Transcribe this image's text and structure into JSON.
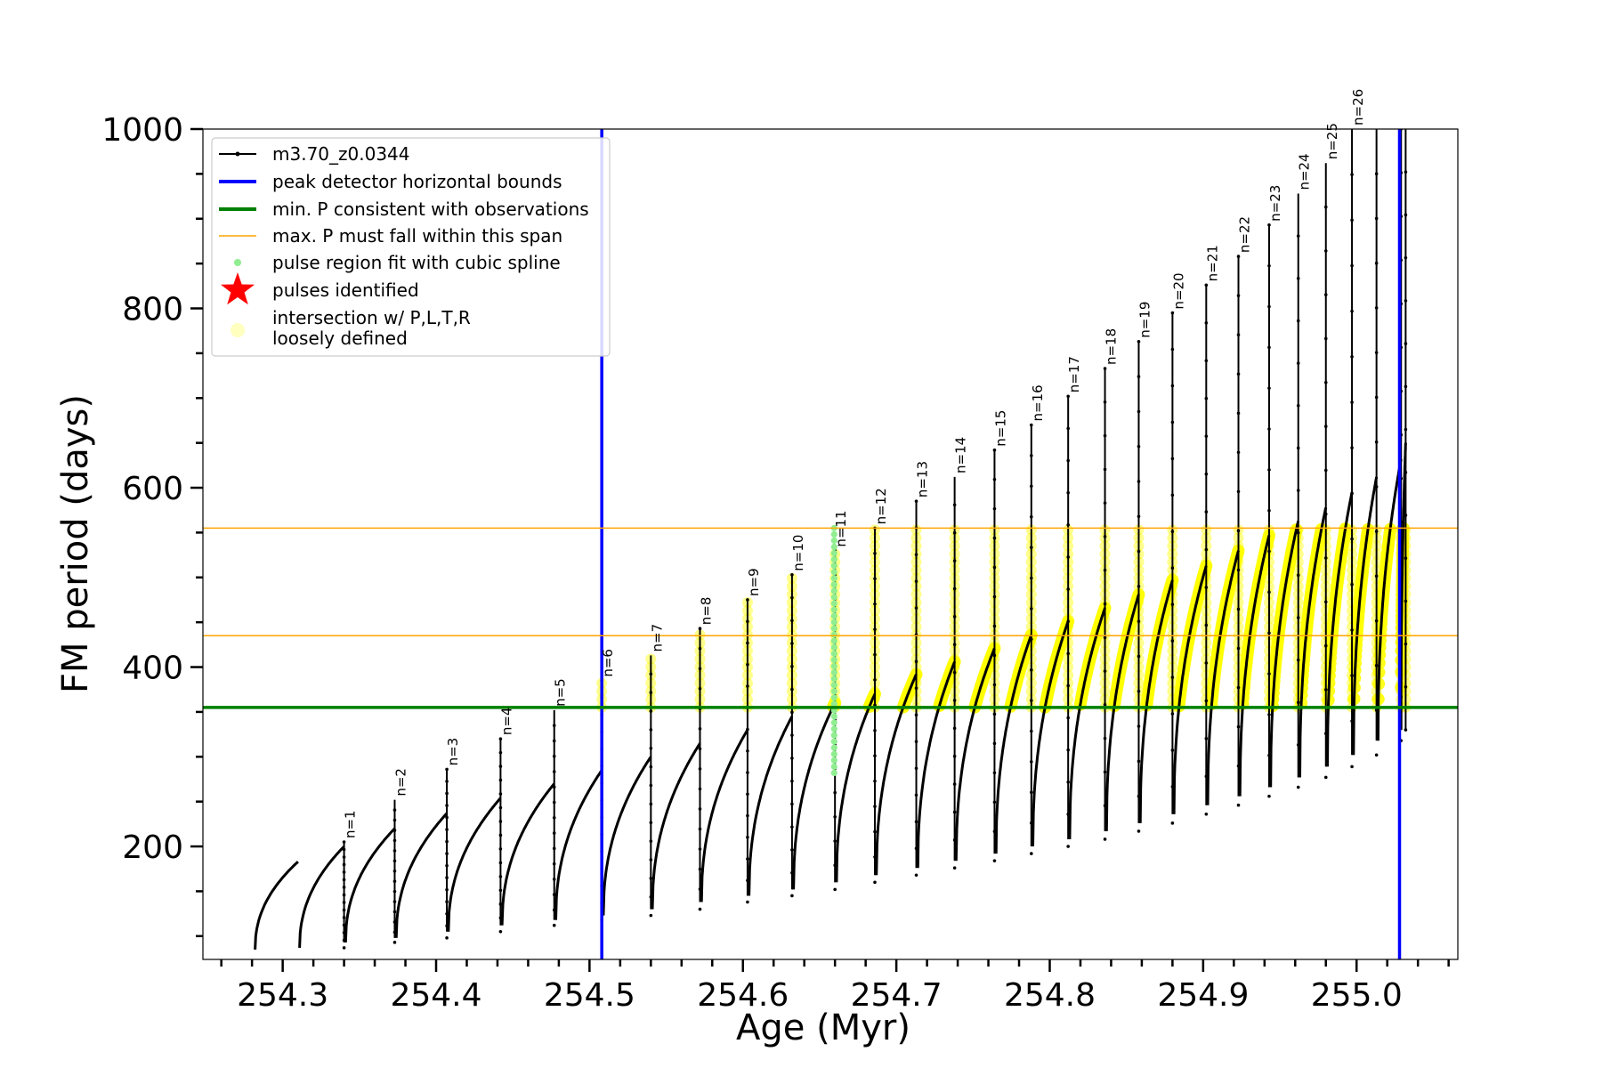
{
  "chart_data": {
    "type": "line",
    "title": "",
    "xlabel": "Age (Myr)",
    "ylabel": "FM period (days)",
    "xlim": [
      254.248,
      255.066
    ],
    "ylim": [
      74,
      1000
    ],
    "xticks_major": [
      254.3,
      254.4,
      254.5,
      254.6,
      254.7,
      254.8,
      254.9,
      255.0
    ],
    "xtick_labels": [
      "254.3",
      "254.4",
      "254.5",
      "254.6",
      "254.7",
      "254.8",
      "254.9",
      "255.0"
    ],
    "xtick_minor_step": 0.02,
    "yticks_major": [
      200,
      400,
      600,
      800,
      1000
    ],
    "ytick_labels": [
      "200",
      "400",
      "600",
      "800",
      "1000"
    ],
    "ytick_minor_step": 50,
    "grid": false,
    "legend_position": "top-left",
    "colors": {
      "track": "#000000",
      "bounds": "#0000ff",
      "min_p": "#008000",
      "max_p": "#ffa500",
      "spline": "#90ee90",
      "pulse": "#ff0000",
      "loose": "#ffff00"
    },
    "legend": [
      {
        "key": "track",
        "label": "m3.70_z0.0344",
        "marker": "line-dot"
      },
      {
        "key": "bounds",
        "label": "peak detector horizontal bounds",
        "marker": "thick-line"
      },
      {
        "key": "min_p",
        "label": "min. P consistent with observations",
        "marker": "thick-line"
      },
      {
        "key": "max_p",
        "label": "max. P must fall within this span",
        "marker": "thin-line"
      },
      {
        "key": "spline",
        "label": "pulse region fit with cubic spline",
        "marker": "dot"
      },
      {
        "key": "pulse",
        "label": "pulses identified",
        "marker": "star"
      },
      {
        "key": "loose",
        "label": "intersection w/ P,L,T,R",
        "label2": "loosely defined",
        "marker": "big-dot"
      }
    ],
    "vertical_lines": [
      254.508,
      255.028
    ],
    "min_period_line": 355,
    "max_period_lines": [
      435,
      555
    ],
    "cycles": [
      {
        "x0": 254.282,
        "x1": 254.31,
        "base": 85,
        "peak": 183,
        "spike": null
      },
      {
        "x0": 254.311,
        "x1": 254.34,
        "base": 87,
        "peak": 200,
        "spike": 205,
        "label": "n=1"
      },
      {
        "x0": 254.341,
        "x1": 254.373,
        "base": 93,
        "peak": 220,
        "spike": 252,
        "label": "n=2"
      },
      {
        "x0": 254.374,
        "x1": 254.407,
        "base": 98,
        "peak": 237,
        "spike": 286,
        "label": "n=3"
      },
      {
        "x0": 254.408,
        "x1": 254.442,
        "base": 105,
        "peak": 254,
        "spike": 320,
        "label": "n=4"
      },
      {
        "x0": 254.443,
        "x1": 254.477,
        "base": 112,
        "peak": 270,
        "spike": 352,
        "label": "n=5"
      },
      {
        "x0": 254.478,
        "x1": 254.508,
        "base": 118,
        "peak": 285,
        "spike": 385,
        "label": "n=6"
      },
      {
        "x0": 254.509,
        "x1": 254.54,
        "base": 123,
        "peak": 300,
        "spike": 413,
        "label": "n=7"
      },
      {
        "x0": 254.541,
        "x1": 254.572,
        "base": 130,
        "peak": 315,
        "spike": 443,
        "label": "n=8"
      },
      {
        "x0": 254.573,
        "x1": 254.603,
        "base": 138,
        "peak": 330,
        "spike": 475,
        "label": "n=9"
      },
      {
        "x0": 254.604,
        "x1": 254.632,
        "base": 145,
        "peak": 345,
        "spike": 503,
        "label": "n=10"
      },
      {
        "x0": 254.633,
        "x1": 254.66,
        "base": 152,
        "peak": 360,
        "spike": 530,
        "label": "n=11"
      },
      {
        "x0": 254.661,
        "x1": 254.686,
        "base": 160,
        "peak": 370,
        "spike": 555,
        "label": "n=12"
      },
      {
        "x0": 254.687,
        "x1": 254.713,
        "base": 168,
        "peak": 392,
        "spike": 585,
        "label": "n=13"
      },
      {
        "x0": 254.714,
        "x1": 254.738,
        "base": 176,
        "peak": 406,
        "spike": 612,
        "label": "n=14"
      },
      {
        "x0": 254.739,
        "x1": 254.764,
        "base": 184,
        "peak": 421,
        "spike": 642,
        "label": "n=15"
      },
      {
        "x0": 254.765,
        "x1": 254.788,
        "base": 192,
        "peak": 436,
        "spike": 670,
        "label": "n=16"
      },
      {
        "x0": 254.789,
        "x1": 254.812,
        "base": 200,
        "peak": 451,
        "spike": 702,
        "label": "n=17"
      },
      {
        "x0": 254.813,
        "x1": 254.836,
        "base": 208,
        "peak": 466,
        "spike": 733,
        "label": "n=18"
      },
      {
        "x0": 254.837,
        "x1": 254.858,
        "base": 217,
        "peak": 481,
        "spike": 763,
        "label": "n=19"
      },
      {
        "x0": 254.859,
        "x1": 254.88,
        "base": 226,
        "peak": 497,
        "spike": 795,
        "label": "n=20"
      },
      {
        "x0": 254.881,
        "x1": 254.902,
        "base": 236,
        "peak": 513,
        "spike": 826,
        "label": "n=21"
      },
      {
        "x0": 254.903,
        "x1": 254.923,
        "base": 246,
        "peak": 530,
        "spike": 858,
        "label": "n=22"
      },
      {
        "x0": 254.924,
        "x1": 254.943,
        "base": 256,
        "peak": 547,
        "spike": 893,
        "label": "n=23"
      },
      {
        "x0": 254.944,
        "x1": 254.962,
        "base": 266,
        "peak": 563,
        "spike": 928,
        "label": "n=24"
      },
      {
        "x0": 254.963,
        "x1": 254.98,
        "base": 277,
        "peak": 578,
        "spike": 962,
        "label": "n=25"
      },
      {
        "x0": 254.981,
        "x1": 254.997,
        "base": 289,
        "peak": 595,
        "spike": 1000,
        "label": "n=26"
      },
      {
        "x0": 254.998,
        "x1": 255.013,
        "base": 302,
        "peak": 612,
        "spike": 1000
      },
      {
        "x0": 255.014,
        "x1": 255.029,
        "base": 318,
        "peak": 632,
        "spike": 1000
      },
      {
        "x0": 255.029,
        "x1": 255.032,
        "base": 330,
        "peak": 650,
        "spike": 1000
      }
    ]
  }
}
